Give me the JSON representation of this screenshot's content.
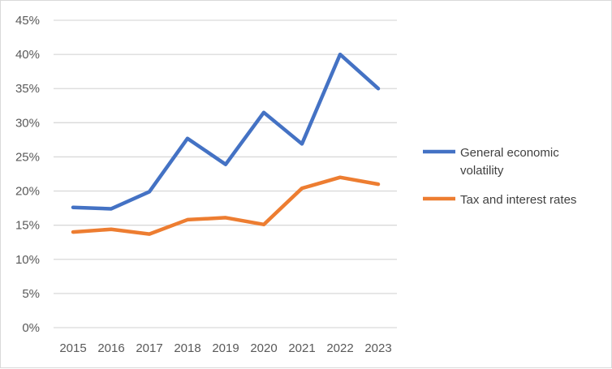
{
  "chart_data": {
    "type": "line",
    "title": "",
    "xlabel": "",
    "ylabel": "",
    "categories": [
      "2015",
      "2016",
      "2017",
      "2018",
      "2019",
      "2020",
      "2021",
      "2022",
      "2023"
    ],
    "ylim": [
      0,
      45
    ],
    "yticks": [
      "0%",
      "5%",
      "10%",
      "15%",
      "20%",
      "25%",
      "30%",
      "35%",
      "40%",
      "45%"
    ],
    "grid": true,
    "legend_position": "right",
    "series": [
      {
        "name": "General economic volatility",
        "legend_lines": [
          "General economic",
          "volatility"
        ],
        "color": "#4472C4",
        "values": [
          17.6,
          17.4,
          19.9,
          27.7,
          23.9,
          31.5,
          26.9,
          40.0,
          35.0
        ]
      },
      {
        "name": "Tax and interest rates",
        "legend_lines": [
          "Tax and interest rates"
        ],
        "color": "#ED7D31",
        "values": [
          14.0,
          14.4,
          13.7,
          15.8,
          16.1,
          15.1,
          20.4,
          22.0,
          21.0
        ]
      }
    ]
  }
}
